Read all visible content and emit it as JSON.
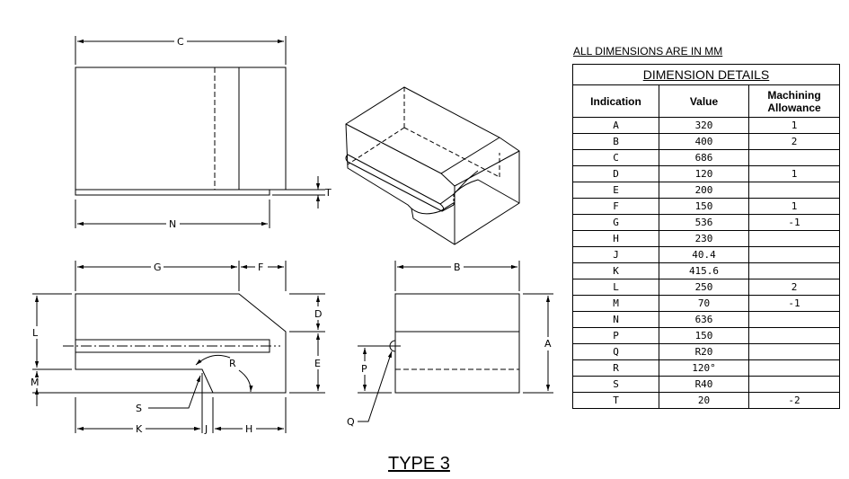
{
  "note": "ALL DIMENSIONS ARE IN MM",
  "table_title": "DIMENSION DETAILS",
  "headers": {
    "indication": "Indication",
    "value": "Value",
    "allowance": "Machining Allowance"
  },
  "rows": [
    {
      "indication": "A",
      "value": "320",
      "allowance": "1"
    },
    {
      "indication": "B",
      "value": "400",
      "allowance": "2"
    },
    {
      "indication": "C",
      "value": "686",
      "allowance": ""
    },
    {
      "indication": "D",
      "value": "120",
      "allowance": "1"
    },
    {
      "indication": "E",
      "value": "200",
      "allowance": ""
    },
    {
      "indication": "F",
      "value": "150",
      "allowance": "1"
    },
    {
      "indication": "G",
      "value": "536",
      "allowance": "-1"
    },
    {
      "indication": "H",
      "value": "230",
      "allowance": ""
    },
    {
      "indication": "J",
      "value": "40.4",
      "allowance": ""
    },
    {
      "indication": "K",
      "value": "415.6",
      "allowance": ""
    },
    {
      "indication": "L",
      "value": "250",
      "allowance": "2"
    },
    {
      "indication": "M",
      "value": "70",
      "allowance": "-1"
    },
    {
      "indication": "N",
      "value": "636",
      "allowance": ""
    },
    {
      "indication": "P",
      "value": "150",
      "allowance": ""
    },
    {
      "indication": "Q",
      "value": "R20",
      "allowance": ""
    },
    {
      "indication": "R",
      "value": "120°",
      "allowance": ""
    },
    {
      "indication": "S",
      "value": "R40",
      "allowance": ""
    },
    {
      "indication": "T",
      "value": "20",
      "allowance": "-2"
    }
  ],
  "drawing_labels": {
    "top_c": "C",
    "top_n": "N",
    "top_t": "T",
    "front_g": "G",
    "front_f": "F",
    "front_l": "L",
    "front_m": "M",
    "front_d": "D",
    "front_e": "E",
    "front_r": "R",
    "front_s": "S",
    "front_k": "K",
    "front_j": "J",
    "front_h": "H",
    "side_b": "B",
    "side_a": "A",
    "side_p": "P",
    "side_q": "Q"
  },
  "title": "TYPE 3"
}
